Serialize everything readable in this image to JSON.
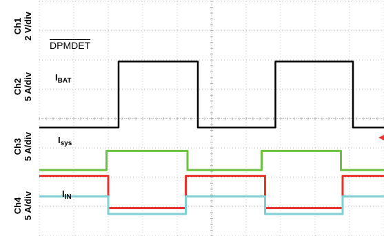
{
  "chart_data": {
    "type": "line",
    "grid": true,
    "grid_divisions": {
      "x": 10,
      "y": 8
    },
    "channels": [
      {
        "id": "ch1",
        "name": "Ch1",
        "scale": "2 V/div",
        "signal": "DPMDET",
        "overline": true,
        "color": "#000000",
        "low_div": 3.7,
        "high_div": 5.95,
        "transitions_div": [
          {
            "t": 0.0,
            "level": "low"
          },
          {
            "t": 2.3,
            "level": "high"
          },
          {
            "t": 4.6,
            "level": "low"
          },
          {
            "t": 6.85,
            "level": "high"
          },
          {
            "t": 9.1,
            "level": "low"
          }
        ]
      },
      {
        "id": "ch2",
        "name": "Ch2",
        "scale": "5 A/div",
        "signal_main": "I",
        "signal_sub": "BAT",
        "color": "#6ac23e",
        "low_div": 2.25,
        "high_div": 2.9,
        "transitions_div": [
          {
            "t": 0.0,
            "level": "low"
          },
          {
            "t": 1.95,
            "level": "high"
          },
          {
            "t": 4.3,
            "level": "low"
          },
          {
            "t": 6.45,
            "level": "high"
          },
          {
            "t": 8.75,
            "level": "low"
          }
        ]
      },
      {
        "id": "ch3",
        "name": "Ch3",
        "scale": "5 A/div",
        "signal_main": "I",
        "signal_sub": "sys",
        "color": "#e8322b",
        "low_div": 0.95,
        "high_div": 2.05,
        "transitions_div": [
          {
            "t": 0.0,
            "level": "high"
          },
          {
            "t": 2.0,
            "level": "low"
          },
          {
            "t": 4.25,
            "level": "high"
          },
          {
            "t": 6.55,
            "level": "low"
          },
          {
            "t": 8.8,
            "level": "high"
          }
        ]
      },
      {
        "id": "ch4",
        "name": "Ch4",
        "scale": "5 A/div",
        "signal_main": "I",
        "signal_sub": "IN",
        "color": "#7fcfd6",
        "low_div": 0.75,
        "high_div": 1.35,
        "transitions_div": [
          {
            "t": 0.0,
            "level": "high"
          },
          {
            "t": 2.0,
            "level": "low"
          },
          {
            "t": 4.25,
            "level": "high"
          },
          {
            "t": 6.55,
            "level": "low"
          },
          {
            "t": 8.8,
            "level": "high"
          }
        ]
      }
    ]
  }
}
